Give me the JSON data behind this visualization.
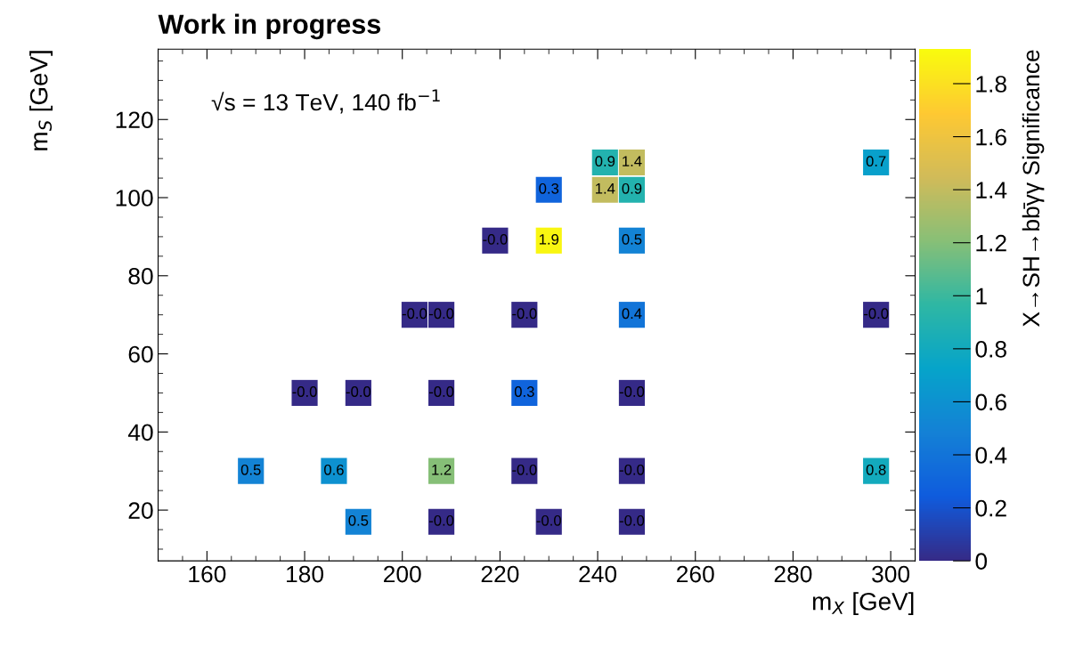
{
  "chart_data": {
    "type": "scatter",
    "title": "Work in progress",
    "xlabel": "m$_{X}$ [GeV]",
    "ylabel": "m$_{S}$ [GeV]",
    "clabel": "X→SH→bb̄γγ Significance",
    "annotations": [
      "√s = 13 TeV, 140 fb$^{−1}$",
      {
        "text": "0.5",
        "x": 169,
        "y": 30
      },
      {
        "text": "0.6",
        "x": 186,
        "y": 30
      },
      {
        "text": "1.2",
        "x": 208,
        "y": 30
      },
      {
        "text": "-0.0",
        "x": 225,
        "y": 30
      },
      {
        "text": "-0.0",
        "x": 247,
        "y": 30
      },
      {
        "text": "0.8",
        "x": 297,
        "y": 30
      },
      {
        "text": "0.5",
        "x": 191,
        "y": 17
      },
      {
        "text": "-0.0",
        "x": 208,
        "y": 17
      },
      {
        "text": "-0.0",
        "x": 230,
        "y": 17
      },
      {
        "text": "-0.0",
        "x": 247,
        "y": 17
      },
      {
        "text": "-0.0",
        "x": 180,
        "y": 50
      },
      {
        "text": "-0.0",
        "x": 191,
        "y": 50
      },
      {
        "text": "-0.0",
        "x": 208,
        "y": 50
      },
      {
        "text": "0.3",
        "x": 225,
        "y": 50
      },
      {
        "text": "-0.0",
        "x": 247,
        "y": 50
      },
      {
        "text": "-0.0",
        "x": 202.5,
        "y": 70
      },
      {
        "text": "-0.0",
        "x": 208,
        "y": 70
      },
      {
        "text": "-0.0",
        "x": 225,
        "y": 70
      },
      {
        "text": "0.4",
        "x": 247,
        "y": 70
      },
      {
        "text": "-0.0",
        "x": 297,
        "y": 70
      },
      {
        "text": "-0.0",
        "x": 219,
        "y": 89
      },
      {
        "text": "1.9",
        "x": 230,
        "y": 89
      },
      {
        "text": "0.5",
        "x": 247,
        "y": 89
      },
      {
        "text": "0.3",
        "x": 230,
        "y": 102
      },
      {
        "text": "1.4",
        "x": 241.5,
        "y": 102
      },
      {
        "text": "0.9",
        "x": 247,
        "y": 102
      },
      {
        "text": "0.9",
        "x": 241.5,
        "y": 109
      },
      {
        "text": "1.4",
        "x": 247,
        "y": 109
      },
      {
        "text": "0.7",
        "x": 297,
        "y": 109
      }
    ],
    "x": [
      169,
      186,
      208,
      225,
      247,
      297,
      191,
      208,
      230,
      247,
      180,
      191,
      208,
      225,
      247,
      202.5,
      208,
      225,
      247,
      297,
      219,
      230,
      247,
      230,
      241.5,
      247,
      241.5,
      247,
      297
    ],
    "values": [
      30,
      30,
      30,
      30,
      30,
      30,
      17,
      17,
      17,
      17,
      50,
      50,
      50,
      50,
      50,
      70,
      70,
      70,
      70,
      70,
      89,
      89,
      89,
      102,
      102,
      102,
      109,
      109,
      109
    ],
    "cvalues": [
      0.5,
      0.6,
      1.2,
      0,
      0,
      0.8,
      0.5,
      0,
      0,
      0,
      0,
      0,
      0,
      0.3,
      0,
      0,
      0,
      0,
      0.4,
      0,
      0,
      1.9,
      0.5,
      0.3,
      1.4,
      0.9,
      0.9,
      1.4,
      0.7
    ],
    "marker": "square",
    "xlim": [
      150,
      305
    ],
    "ylim": [
      7,
      138
    ],
    "xticks": [
      160,
      180,
      200,
      220,
      240,
      260,
      280,
      300
    ],
    "yticks": [
      20,
      40,
      60,
      80,
      100,
      120
    ],
    "clim": [
      0,
      1.93
    ],
    "cticks": [
      0,
      0.2,
      0.4,
      0.6,
      0.8,
      1,
      1.2,
      1.4,
      1.6,
      1.8
    ]
  }
}
